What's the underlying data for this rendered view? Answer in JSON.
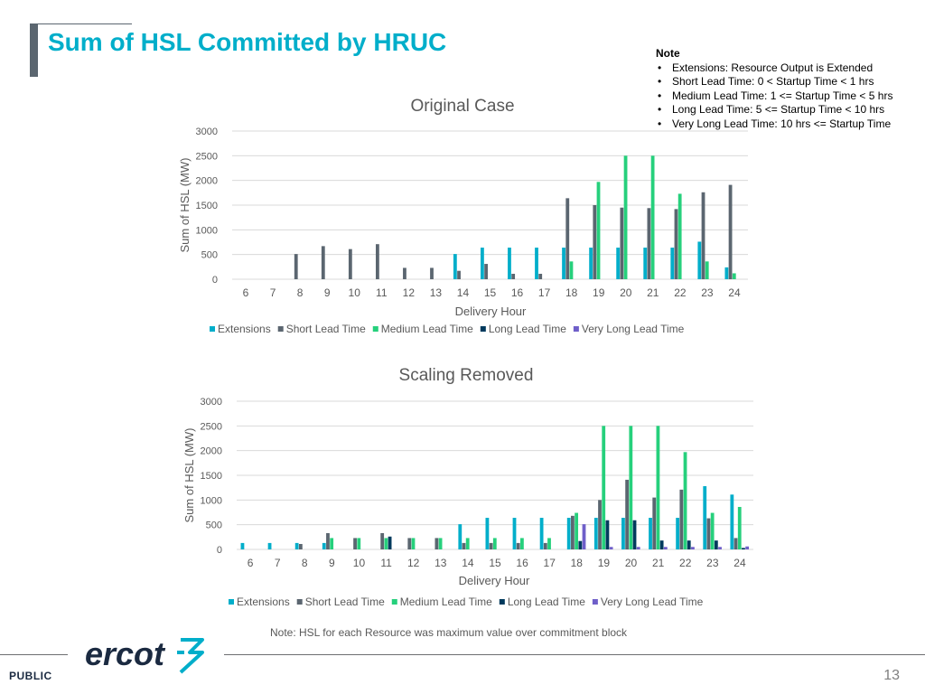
{
  "page": {
    "title": "Sum of HSL Committed by HRUC",
    "footnote": "Note: HSL for each Resource was maximum value over commitment block",
    "footer_label": "PUBLIC",
    "page_number": "13",
    "logo_text": "ercot"
  },
  "note": {
    "heading": "Note",
    "items": [
      "Extensions: Resource Output is Extended",
      "Short Lead Time: 0 < Startup Time < 1 hrs",
      "Medium Lead Time: 1 <= Startup Time < 5 hrs",
      "Long Lead Time: 5 <= Startup Time < 10 hrs",
      "Very Long Lead Time: 10 hrs <= Startup Time"
    ]
  },
  "colors": {
    "title": "#00aeca",
    "Extensions": "#00aeca",
    "Short Lead Time": "#5b6670",
    "Medium Lead Time": "#26d07c",
    "Long Lead Time": "#003a5d",
    "Very Long Lead Time": "#6f5fc9"
  },
  "chart_data": [
    {
      "type": "bar",
      "title": "Original Case",
      "xlabel": "Delivery Hour",
      "ylabel": "Sum of HSL (MW)",
      "ylim": [
        0,
        3000
      ],
      "yticks": [
        0,
        500,
        1000,
        1500,
        2000,
        2500,
        3000
      ],
      "grid": true,
      "legend_position": "bottom",
      "categories": [
        "6",
        "7",
        "8",
        "9",
        "10",
        "11",
        "12",
        "13",
        "14",
        "15",
        "16",
        "17",
        "18",
        "19",
        "20",
        "21",
        "22",
        "23",
        "24"
      ],
      "series": [
        {
          "name": "Extensions",
          "values": [
            0,
            0,
            0,
            0,
            0,
            0,
            0,
            0,
            510,
            640,
            640,
            640,
            640,
            640,
            640,
            640,
            640,
            760,
            240
          ]
        },
        {
          "name": "Short Lead Time",
          "values": [
            0,
            0,
            510,
            670,
            610,
            710,
            230,
            230,
            170,
            310,
            110,
            110,
            1640,
            1500,
            1450,
            1440,
            1420,
            1760,
            1910
          ]
        },
        {
          "name": "Medium Lead Time",
          "values": [
            0,
            0,
            0,
            0,
            0,
            0,
            0,
            0,
            0,
            0,
            0,
            0,
            360,
            1970,
            2500,
            2500,
            1730,
            360,
            120
          ]
        },
        {
          "name": "Long Lead Time",
          "values": [
            0,
            0,
            0,
            0,
            0,
            0,
            0,
            0,
            0,
            0,
            0,
            0,
            0,
            0,
            0,
            0,
            0,
            0,
            0
          ]
        },
        {
          "name": "Very Long Lead Time",
          "values": [
            0,
            0,
            0,
            0,
            0,
            0,
            0,
            0,
            0,
            0,
            0,
            0,
            0,
            0,
            0,
            0,
            0,
            0,
            0
          ]
        }
      ]
    },
    {
      "type": "bar",
      "title": "Scaling Removed",
      "xlabel": "Delivery Hour",
      "ylabel": "Sum of HSL (MW)",
      "ylim": [
        0,
        3000
      ],
      "yticks": [
        0,
        500,
        1000,
        1500,
        2000,
        2500,
        3000
      ],
      "grid": true,
      "legend_position": "bottom",
      "categories": [
        "6",
        "7",
        "8",
        "9",
        "10",
        "11",
        "12",
        "13",
        "14",
        "15",
        "16",
        "17",
        "18",
        "19",
        "20",
        "21",
        "22",
        "23",
        "24"
      ],
      "series": [
        {
          "name": "Extensions",
          "values": [
            130,
            130,
            130,
            130,
            0,
            0,
            0,
            0,
            510,
            640,
            640,
            640,
            640,
            640,
            640,
            640,
            640,
            1280,
            1110
          ]
        },
        {
          "name": "Short Lead Time",
          "values": [
            0,
            0,
            110,
            330,
            230,
            330,
            230,
            230,
            130,
            130,
            130,
            130,
            680,
            1000,
            1410,
            1050,
            1210,
            630,
            230
          ]
        },
        {
          "name": "Medium Lead Time",
          "values": [
            0,
            0,
            0,
            230,
            230,
            230,
            230,
            230,
            230,
            230,
            230,
            230,
            740,
            2500,
            2500,
            2500,
            1970,
            740,
            860
          ]
        },
        {
          "name": "Long Lead Time",
          "values": [
            0,
            0,
            0,
            0,
            0,
            260,
            0,
            0,
            0,
            0,
            0,
            0,
            170,
            590,
            590,
            180,
            180,
            180,
            30
          ]
        },
        {
          "name": "Very Long Lead Time",
          "values": [
            0,
            0,
            0,
            0,
            0,
            0,
            0,
            0,
            0,
            0,
            0,
            0,
            510,
            50,
            50,
            50,
            50,
            50,
            60
          ]
        }
      ]
    }
  ]
}
